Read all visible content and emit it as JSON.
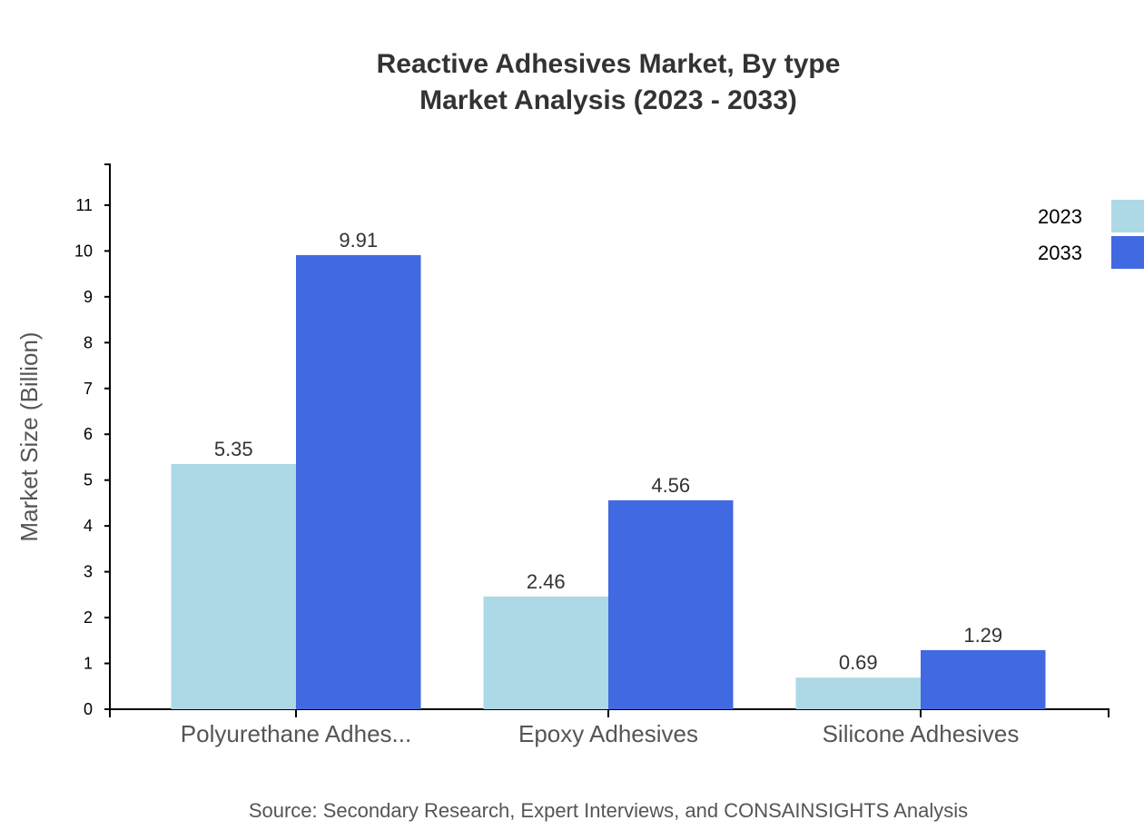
{
  "chart_data": {
    "type": "bar",
    "title": "Reactive Adhesives Market, By type",
    "subtitle": "Market Analysis (2023 - 2033)",
    "xlabel": "",
    "ylabel": "Market Size (Billion)",
    "categories": [
      "Polyurethane Adhes...",
      "Epoxy Adhesives",
      "Silicone Adhesives"
    ],
    "series": [
      {
        "name": "2023",
        "color": "#add8e6",
        "values": [
          5.35,
          2.46,
          0.69
        ]
      },
      {
        "name": "2033",
        "color": "#4169e1",
        "values": [
          9.91,
          4.56,
          1.29
        ]
      }
    ],
    "ylim": [
      0,
      11.89
    ],
    "yticks": [
      0,
      1,
      2,
      3,
      4,
      5,
      6,
      7,
      8,
      9,
      10,
      11
    ],
    "grid": false,
    "legend_position": "top-right",
    "source": "Source: Secondary Research, Expert Interviews, and CONSAINSIGHTS Analysis"
  }
}
